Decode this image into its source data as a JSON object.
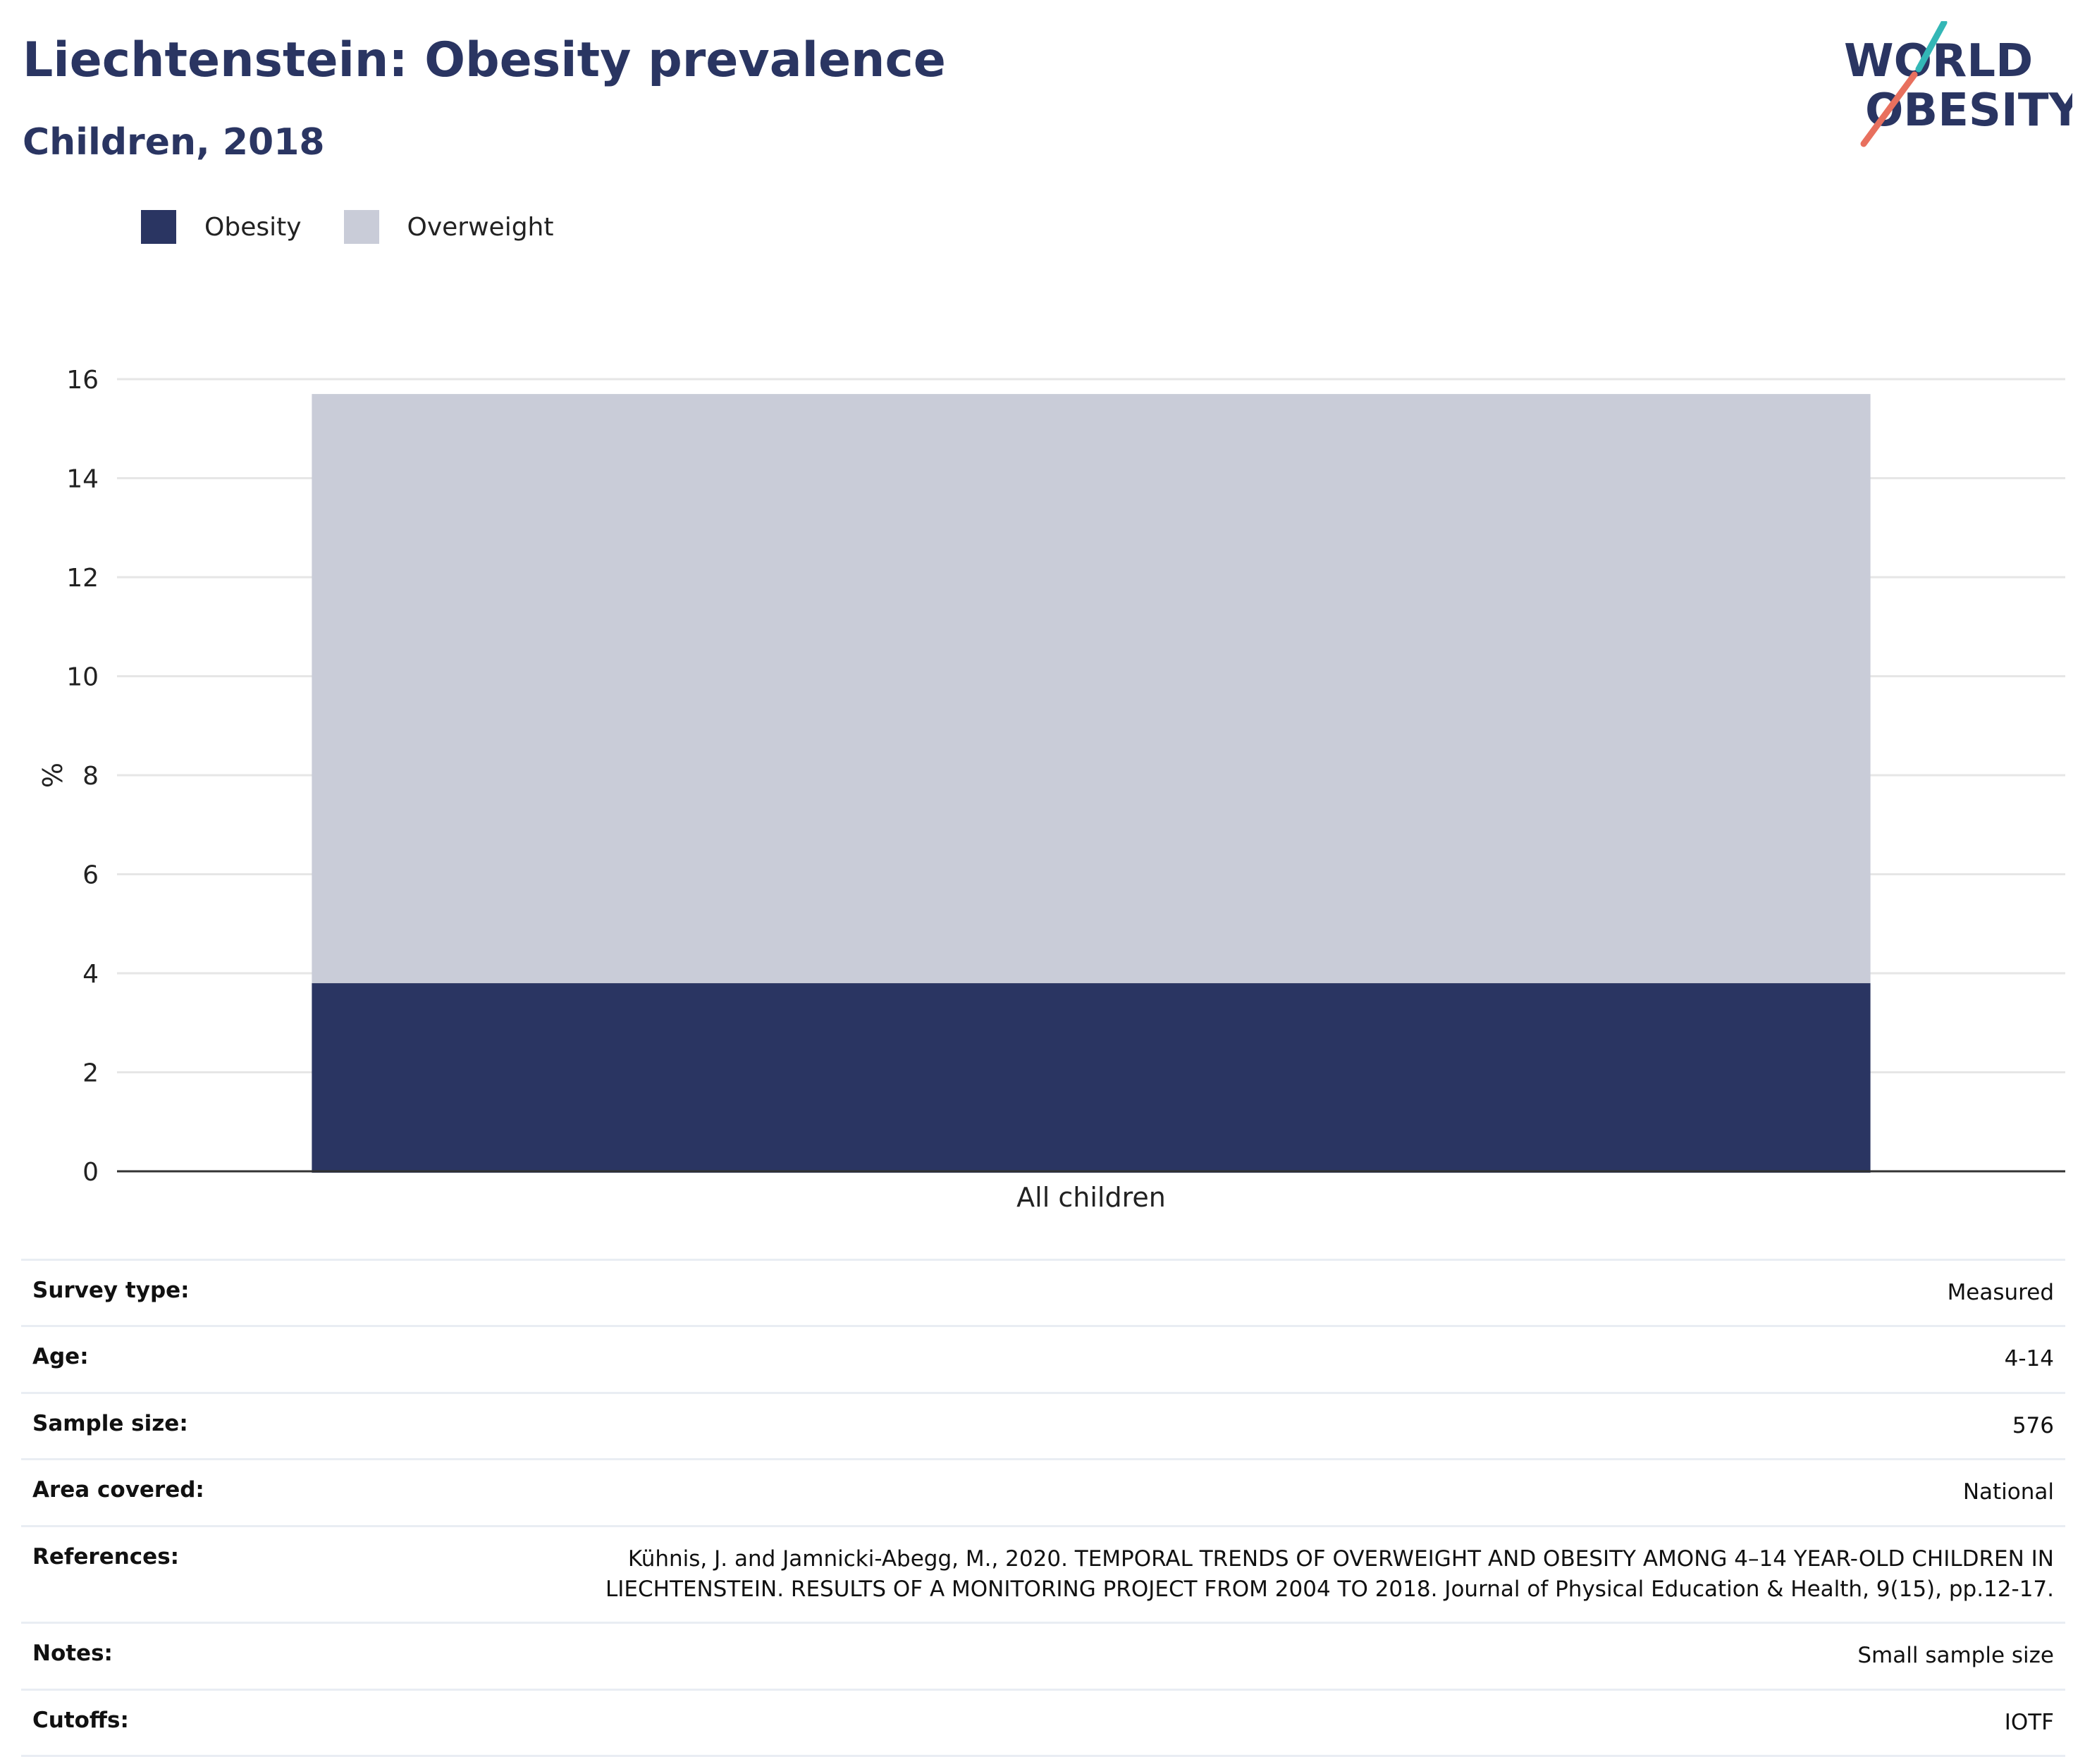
{
  "title": "Liechtenstein: Obesity prevalence",
  "subtitle": "Children, 2018",
  "logo": {
    "line1": "WORLD",
    "line2": "OBESITY",
    "accent_top": "#33b7b6",
    "accent_bottom": "#e8705e",
    "color": "#2a3562"
  },
  "legend": [
    {
      "label": "Obesity",
      "color": "#2a3562"
    },
    {
      "label": "Overweight",
      "color": "#c9ccd8"
    }
  ],
  "chart_data": {
    "type": "bar",
    "stacked": true,
    "categories": [
      "All children"
    ],
    "series": [
      {
        "name": "Obesity",
        "values": [
          3.8
        ],
        "color": "#2a3562"
      },
      {
        "name": "Overweight",
        "values": [
          11.9
        ],
        "color": "#c9ccd8"
      }
    ],
    "ylabel": "%",
    "ylim": [
      0,
      16
    ],
    "yticks": [
      0,
      2,
      4,
      6,
      8,
      10,
      12,
      14,
      16
    ],
    "grid": true,
    "legend_position": "top-left"
  },
  "info": [
    {
      "key": "Survey type:",
      "value": "Measured"
    },
    {
      "key": "Age:",
      "value": "4-14"
    },
    {
      "key": "Sample size:",
      "value": "576"
    },
    {
      "key": "Area covered:",
      "value": "National"
    },
    {
      "key": "References:",
      "value": "Kühnis, J. and Jamnicki-Abegg, M., 2020. TEMPORAL TRENDS OF OVERWEIGHT AND OBESITY AMONG 4–14 YEAR-OLD CHILDREN IN LIECHTENSTEIN. RESULTS OF A MONITORING PROJECT FROM 2004 TO 2018. Journal of Physical Education & Health, 9(15), pp.12-17."
    },
    {
      "key": "Notes:",
      "value": "Small sample size"
    },
    {
      "key": "Cutoffs:",
      "value": "IOTF"
    }
  ]
}
